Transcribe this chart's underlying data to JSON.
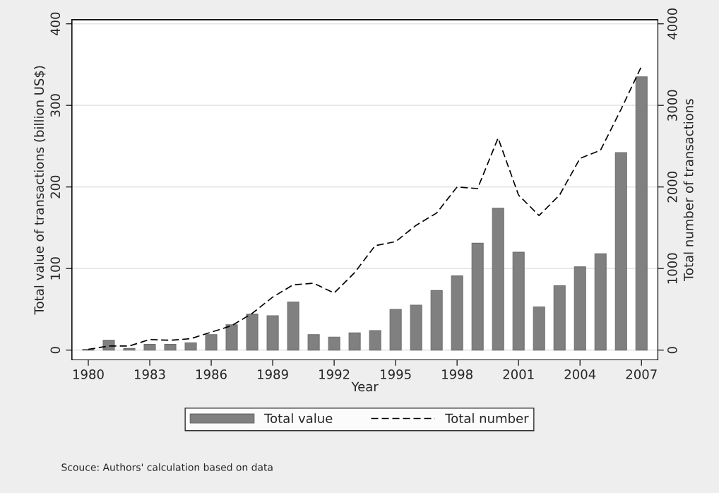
{
  "chart_data": {
    "type": "bar",
    "xlabel": "Year",
    "ylabel": "Total value of transactions (billion US$)",
    "y2label": "Total number of transactions",
    "x": [
      1980,
      1981,
      1982,
      1983,
      1984,
      1985,
      1986,
      1987,
      1988,
      1989,
      1990,
      1991,
      1992,
      1993,
      1994,
      1995,
      1996,
      1997,
      1998,
      1999,
      2000,
      2001,
      2002,
      2003,
      2004,
      2005,
      2006,
      2007
    ],
    "series": [
      {
        "name": "Total value",
        "color": "#808080",
        "values": [
          1,
          12,
          2,
          7,
          7,
          9,
          19,
          31,
          44,
          42,
          59,
          19,
          16,
          21,
          24,
          50,
          55,
          73,
          91,
          131,
          174,
          120,
          53,
          79,
          102,
          118,
          242,
          335
        ]
      },
      {
        "name": "Total number",
        "type": "line",
        "axis": "y2",
        "color": "#000000",
        "line_style": "dashed",
        "values": [
          10,
          50,
          50,
          130,
          120,
          140,
          220,
          300,
          450,
          650,
          800,
          820,
          700,
          950,
          1280,
          1330,
          1530,
          1680,
          2000,
          1980,
          2600,
          1900,
          1650,
          1900,
          2350,
          2450,
          2950,
          3480
        ]
      }
    ],
    "xlim": [
      1979.2,
      2007.8
    ],
    "xticks": [
      1980,
      1983,
      1986,
      1989,
      1992,
      1995,
      1998,
      2001,
      2004,
      2007
    ],
    "ylim": [
      -12,
      405
    ],
    "yticks": [
      0,
      100,
      200,
      300,
      400
    ],
    "y2lim": [
      -120,
      4050
    ],
    "y2ticks": [
      0,
      1000,
      2000,
      3000,
      4000
    ],
    "grid": "y",
    "legend": "bottom",
    "annotations": [
      "Scouce: Authors' calculation based on data"
    ]
  }
}
